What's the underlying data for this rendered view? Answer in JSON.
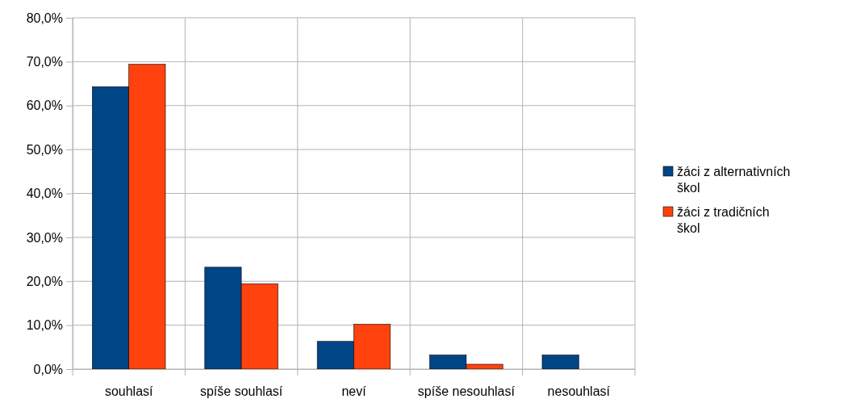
{
  "chart_data": {
    "type": "bar",
    "categories": [
      "souhlasí",
      "spíše souhlasí",
      "neví",
      "spíše nesouhlasí",
      "nesouhlasí"
    ],
    "series": [
      {
        "name": "žáci z alternativních škol",
        "color": "#004586",
        "values": [
          64.3,
          23.2,
          6.3,
          3.2,
          3.2
        ]
      },
      {
        "name": "žáci z tradičních škol",
        "color": "#ff420e",
        "values": [
          69.4,
          19.4,
          10.2,
          1.1,
          0
        ]
      }
    ],
    "ylim": [
      0,
      80
    ],
    "yticks": [
      {
        "value": 0,
        "label": "0,0%"
      },
      {
        "value": 10,
        "label": "10,0%"
      },
      {
        "value": 20,
        "label": "20,0%"
      },
      {
        "value": 30,
        "label": "30,0%"
      },
      {
        "value": 40,
        "label": "40,0%"
      },
      {
        "value": 50,
        "label": "50,0%"
      },
      {
        "value": 60,
        "label": "60,0%"
      },
      {
        "value": 70,
        "label": "70,0%"
      },
      {
        "value": 80,
        "label": "80,0%"
      }
    ],
    "grid": true,
    "legend": "right"
  }
}
